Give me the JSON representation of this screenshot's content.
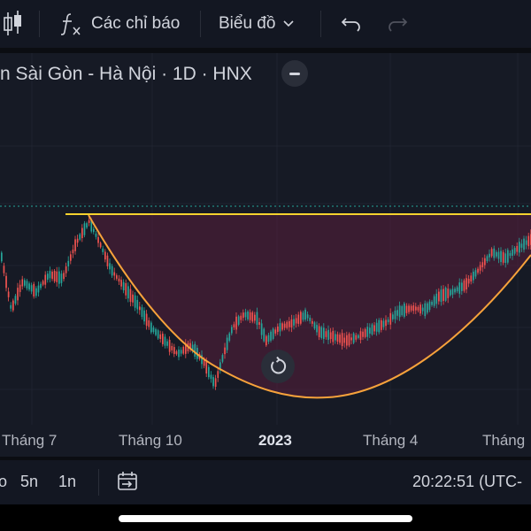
{
  "toolbar": {
    "indicators_label": "Các chỉ báo",
    "chart_type_label": "Biểu đồ"
  },
  "chart": {
    "symbol_title": "n Sài Gòn - Hà Nội · 1D · HNX",
    "x_tick_labels": [
      "Tháng 7",
      "Tháng 10",
      "2023",
      "Tháng 4",
      "Tháng"
    ],
    "colors": {
      "up": "#26a69a",
      "down": "#ef5350",
      "resistance_line": "#f5d22e",
      "cup_curve": "#f7a23b",
      "cup_fill": "#5a1f3c",
      "price_line": "#26a69a"
    }
  },
  "bottom": {
    "ranges": [
      "o",
      "5n",
      "1n"
    ],
    "clock": "20:22:51 (UTC-"
  },
  "icons": [
    "candlestick-icon",
    "function-icon",
    "chevron-down-icon",
    "undo-icon",
    "redo-icon",
    "minus-icon",
    "reset-icon",
    "calendar-range-icon"
  ]
}
